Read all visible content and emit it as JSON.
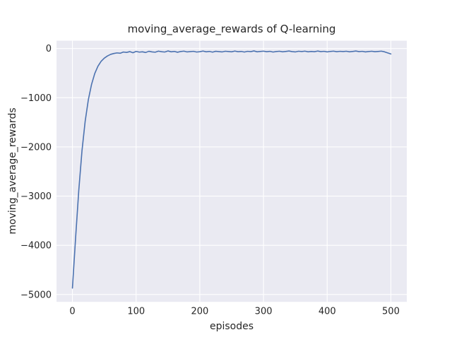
{
  "colors": {
    "line": "#4C72B0",
    "plot_background": "#EAEAF2",
    "grid": "#FFFFFF",
    "text": "#262626",
    "figure_background": "#FFFFFF"
  },
  "chart_data": {
    "type": "line",
    "title": "moving_average_rewards of Q-learning",
    "xlabel": "episodes",
    "ylabel": "moving_average_rewards",
    "xlim": [
      -25,
      525
    ],
    "ylim": [
      -5150,
      160
    ],
    "xticks": [
      0,
      100,
      200,
      300,
      400,
      500
    ],
    "xtick_labels": [
      "0",
      "100",
      "200",
      "300",
      "400",
      "500"
    ],
    "yticks": [
      0,
      -1000,
      -2000,
      -3000,
      -4000,
      -5000
    ],
    "ytick_labels": [
      "0",
      "−1000",
      "−2000",
      "−3000",
      "−4000",
      "−5000"
    ],
    "grid": true,
    "legend": null,
    "series": [
      {
        "name": "moving_average_rewards",
        "x": [
          0,
          5,
          10,
          15,
          20,
          25,
          30,
          35,
          40,
          45,
          50,
          55,
          60,
          65,
          70,
          75,
          80,
          85,
          90,
          95,
          100,
          105,
          110,
          115,
          120,
          125,
          130,
          135,
          140,
          145,
          150,
          155,
          160,
          165,
          170,
          175,
          180,
          185,
          190,
          195,
          200,
          205,
          210,
          215,
          220,
          225,
          230,
          235,
          240,
          245,
          250,
          255,
          260,
          265,
          270,
          275,
          280,
          285,
          290,
          295,
          300,
          305,
          310,
          315,
          320,
          325,
          330,
          335,
          340,
          345,
          350,
          355,
          360,
          365,
          370,
          375,
          380,
          385,
          390,
          395,
          400,
          405,
          410,
          415,
          420,
          425,
          430,
          435,
          440,
          445,
          450,
          455,
          460,
          465,
          470,
          475,
          480,
          485,
          490,
          495,
          500
        ],
        "y": [
          -4870,
          -3850,
          -2880,
          -2080,
          -1480,
          -1040,
          -730,
          -510,
          -360,
          -260,
          -195,
          -150,
          -118,
          -100,
          -88,
          -95,
          -70,
          -78,
          -62,
          -85,
          -58,
          -72,
          -66,
          -80,
          -55,
          -68,
          -74,
          -52,
          -64,
          -70,
          -48,
          -66,
          -58,
          -75,
          -60,
          -52,
          -68,
          -62,
          -56,
          -70,
          -64,
          -50,
          -66,
          -58,
          -72,
          -55,
          -62,
          -68,
          -54,
          -60,
          -66,
          -50,
          -64,
          -58,
          -70,
          -56,
          -62,
          -48,
          -66,
          -58,
          -52,
          -64,
          -56,
          -70,
          -60,
          -54,
          -66,
          -58,
          -50,
          -62,
          -68,
          -54,
          -60,
          -52,
          -66,
          -58,
          -64,
          -50,
          -62,
          -56,
          -68,
          -58,
          -52,
          -64,
          -56,
          -60,
          -54,
          -66,
          -58,
          -50,
          -62,
          -56,
          -68,
          -60,
          -54,
          -64,
          -58,
          -52,
          -66,
          -88,
          -110
        ]
      }
    ]
  }
}
